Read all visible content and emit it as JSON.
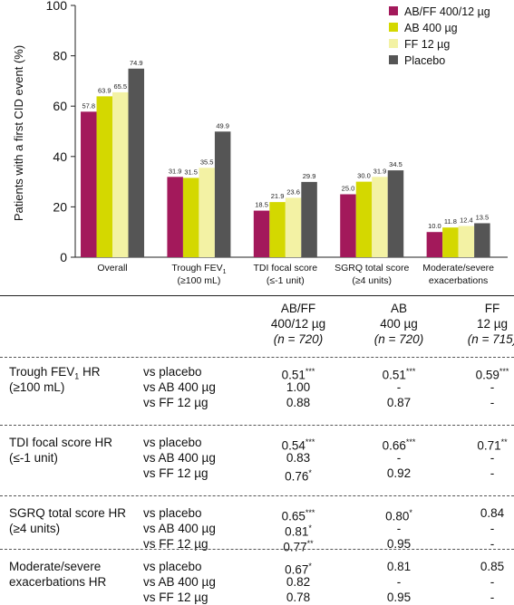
{
  "chart_data": {
    "type": "bar",
    "ylabel": "Patients with a first CID event (%)",
    "ylim": [
      0,
      100
    ],
    "yticks": [
      "0",
      "20",
      "40",
      "60",
      "80",
      "100"
    ],
    "categories": [
      {
        "line1": "Overall",
        "line2": ""
      },
      {
        "line1": "Trough FEV",
        "line1_sub": "1",
        "line2": "(≥100 mL)"
      },
      {
        "line1": "TDI focal score",
        "line2": "(≤-1 unit)"
      },
      {
        "line1": "SGRQ total score",
        "line2": "(≥4 units)"
      },
      {
        "line1": "Moderate/severe",
        "line2": "exacerbations"
      }
    ],
    "series": [
      {
        "name": "AB/FF 400/12 µg",
        "color": "#a3195b",
        "values": [
          57.8,
          31.9,
          18.5,
          25.0,
          10.0
        ],
        "labels": [
          "57.8",
          "31.9",
          "18.5",
          "25.0",
          "10.0"
        ]
      },
      {
        "name": "AB 400 µg",
        "color": "#d4d800",
        "values": [
          63.9,
          31.5,
          21.9,
          30.0,
          11.8
        ],
        "labels": [
          "63.9",
          "31.5",
          "21.9",
          "30.0",
          "11.8"
        ]
      },
      {
        "name": "FF 12 µg",
        "color": "#f3f2a4",
        "values": [
          65.5,
          35.5,
          23.6,
          31.9,
          12.4
        ],
        "labels": [
          "65.5",
          "35.5",
          "23.6",
          "31.9",
          "12.4"
        ]
      },
      {
        "name": "Placebo",
        "color": "#555555",
        "values": [
          74.9,
          49.9,
          29.9,
          34.5,
          13.5
        ],
        "labels": [
          "74.9",
          "49.9",
          "29.9",
          "34.5",
          "13.5"
        ]
      }
    ],
    "legend_position": "top-right"
  },
  "table": {
    "columns": [
      {
        "line1": "AB/FF",
        "line2": "400/12 µg",
        "n": "(n = 720)"
      },
      {
        "line1": "AB",
        "line2": "400 µg",
        "n": "(n = 720)"
      },
      {
        "line1": "FF",
        "line2": "12 µg",
        "n": "(n = 715)"
      }
    ],
    "groups": [
      {
        "label1": "Trough FEV",
        "label1_sub": "1",
        "label1_tail": " HR",
        "label2": "(≥100 mL)",
        "rows": [
          {
            "comp": "vs placebo",
            "cells": [
              {
                "v": "0.51",
                "s": "***"
              },
              {
                "v": "0.51",
                "s": "***"
              },
              {
                "v": "0.59",
                "s": "***"
              }
            ]
          },
          {
            "comp": "vs AB 400 µg",
            "cells": [
              {
                "v": "1.00",
                "s": ""
              },
              {
                "v": "-",
                "s": ""
              },
              {
                "v": "-",
                "s": ""
              }
            ]
          },
          {
            "comp": "vs FF 12 µg",
            "cells": [
              {
                "v": "0.88",
                "s": ""
              },
              {
                "v": "0.87",
                "s": ""
              },
              {
                "v": "-",
                "s": ""
              }
            ]
          }
        ]
      },
      {
        "label1": "TDI focal score HR",
        "label1_sub": "",
        "label1_tail": "",
        "label2": "(≤-1 unit)",
        "rows": [
          {
            "comp": "vs placebo",
            "cells": [
              {
                "v": "0.54",
                "s": "***"
              },
              {
                "v": "0.66",
                "s": "***"
              },
              {
                "v": "0.71",
                "s": "**"
              }
            ]
          },
          {
            "comp": "vs AB 400 µg",
            "cells": [
              {
                "v": "0.83",
                "s": ""
              },
              {
                "v": "-",
                "s": ""
              },
              {
                "v": "-",
                "s": ""
              }
            ]
          },
          {
            "comp": "vs FF 12 µg",
            "cells": [
              {
                "v": "0.76",
                "s": "*"
              },
              {
                "v": "0.92",
                "s": ""
              },
              {
                "v": "-",
                "s": ""
              }
            ]
          }
        ]
      },
      {
        "label1": "SGRQ total score HR",
        "label1_sub": "",
        "label1_tail": "",
        "label2": "(≥4 units)",
        "rows": [
          {
            "comp": "vs placebo",
            "cells": [
              {
                "v": "0.65",
                "s": "***"
              },
              {
                "v": "0.80",
                "s": "*"
              },
              {
                "v": "0.84",
                "s": ""
              }
            ]
          },
          {
            "comp": "vs AB 400 µg",
            "cells": [
              {
                "v": "0.81",
                "s": "*"
              },
              {
                "v": "-",
                "s": ""
              },
              {
                "v": "-",
                "s": ""
              }
            ]
          },
          {
            "comp": "vs FF 12 µg",
            "cells": [
              {
                "v": "0.77",
                "s": "**"
              },
              {
                "v": "0.95",
                "s": ""
              },
              {
                "v": "-",
                "s": ""
              }
            ]
          }
        ]
      },
      {
        "label1": "Moderate/severe",
        "label1_sub": "",
        "label1_tail": "",
        "label2": "exacerbations HR",
        "rows": [
          {
            "comp": "vs placebo",
            "cells": [
              {
                "v": "0.67",
                "s": "*"
              },
              {
                "v": "0.81",
                "s": ""
              },
              {
                "v": "0.85",
                "s": ""
              }
            ]
          },
          {
            "comp": "vs AB 400 µg",
            "cells": [
              {
                "v": "0.82",
                "s": ""
              },
              {
                "v": "-",
                "s": ""
              },
              {
                "v": "-",
                "s": ""
              }
            ]
          },
          {
            "comp": "vs FF 12 µg",
            "cells": [
              {
                "v": "0.78",
                "s": ""
              },
              {
                "v": "0.95",
                "s": ""
              },
              {
                "v": "-",
                "s": ""
              }
            ]
          }
        ]
      }
    ]
  }
}
